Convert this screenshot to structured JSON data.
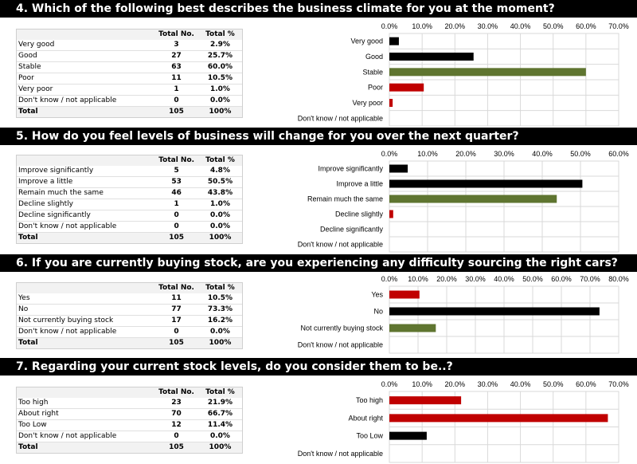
{
  "questions": [
    {
      "title": "4. Which of the following best describes the business climate for you at the moment?",
      "columns": [
        "Total No.",
        "Total %"
      ],
      "rows": [
        {
          "label": "Very good",
          "n": "3",
          "pct": "2.9%"
        },
        {
          "label": "Good",
          "n": "27",
          "pct": "25.7%"
        },
        {
          "label": "Stable",
          "n": "63",
          "pct": "60.0%"
        },
        {
          "label": "Poor",
          "n": "11",
          "pct": "10.5%"
        },
        {
          "label": "Very poor",
          "n": "1",
          "pct": "1.0%"
        },
        {
          "label": "Don't know / not applicable",
          "n": "0",
          "pct": "0.0%"
        }
      ],
      "total": {
        "label": "Total",
        "n": "105",
        "pct": "100%"
      }
    },
    {
      "title": "5. How do you feel levels of business will change for you over the next quarter?",
      "columns": [
        "Total No.",
        "Total %"
      ],
      "rows": [
        {
          "label": "Improve significantly",
          "n": "5",
          "pct": "4.8%"
        },
        {
          "label": "Improve a little",
          "n": "53",
          "pct": "50.5%"
        },
        {
          "label": "Remain much the same",
          "n": "46",
          "pct": "43.8%"
        },
        {
          "label": "Decline slightly",
          "n": "1",
          "pct": "1.0%"
        },
        {
          "label": "Decline significantly",
          "n": "0",
          "pct": "0.0%"
        },
        {
          "label": "Don't know / not applicable",
          "n": "0",
          "pct": "0.0%"
        }
      ],
      "total": {
        "label": "Total",
        "n": "105",
        "pct": "100%"
      }
    },
    {
      "title": "6. If you are currently buying stock, are you experiencing any difficulty sourcing the right cars?",
      "columns": [
        "Total No.",
        "Total %"
      ],
      "rows": [
        {
          "label": "Yes",
          "n": "11",
          "pct": "10.5%"
        },
        {
          "label": "No",
          "n": "77",
          "pct": "73.3%"
        },
        {
          "label": "Not currently buying stock",
          "n": "17",
          "pct": "16.2%"
        },
        {
          "label": "Don't know / not applicable",
          "n": "0",
          "pct": "0.0%"
        }
      ],
      "total": {
        "label": "Total",
        "n": "105",
        "pct": "100%"
      }
    },
    {
      "title": "7. Regarding your current stock levels, do you consider them to be..?",
      "columns": [
        "Total No.",
        "Total %"
      ],
      "rows": [
        {
          "label": "Too high",
          "n": "23",
          "pct": "21.9%"
        },
        {
          "label": "About right",
          "n": "70",
          "pct": "66.7%"
        },
        {
          "label": "Too Low",
          "n": "12",
          "pct": "11.4%"
        },
        {
          "label": "Don't know / not applicable",
          "n": "0",
          "pct": "0.0%"
        }
      ],
      "total": {
        "label": "Total",
        "n": "105",
        "pct": "100%"
      }
    }
  ],
  "chart_data": [
    {
      "type": "bar",
      "orientation": "horizontal",
      "categories": [
        "Very good",
        "Good",
        "Stable",
        "Poor",
        "Very poor",
        "Don't know / not applicable"
      ],
      "values": [
        2.9,
        25.7,
        60.0,
        10.5,
        1.0,
        0.0
      ],
      "colors": [
        "#000000",
        "#000000",
        "#5f7530",
        "#c00000",
        "#c00000",
        "#c00000"
      ],
      "xlim": [
        0,
        70
      ],
      "ticks": [
        "0.0%",
        "10.0%",
        "20.0%",
        "30.0%",
        "40.0%",
        "50.0%",
        "60.0%",
        "70.0%"
      ],
      "axis_position": "top",
      "grid": true
    },
    {
      "type": "bar",
      "orientation": "horizontal",
      "categories": [
        "Improve significantly",
        "Improve a little",
        "Remain much the same",
        "Decline slightly",
        "Decline significantly",
        "Don't know / not applicable"
      ],
      "values": [
        4.8,
        50.5,
        43.8,
        1.0,
        0.0,
        0.0
      ],
      "colors": [
        "#000000",
        "#000000",
        "#5f7530",
        "#c00000",
        "#c00000",
        "#c00000"
      ],
      "xlim": [
        0,
        60
      ],
      "ticks": [
        "0.0%",
        "10.0%",
        "20.0%",
        "30.0%",
        "40.0%",
        "50.0%",
        "60.0%"
      ],
      "axis_position": "top",
      "grid": true
    },
    {
      "type": "bar",
      "orientation": "horizontal",
      "categories": [
        "Yes",
        "No",
        "Not currently buying stock",
        "Don't know / not applicable"
      ],
      "values": [
        10.5,
        73.3,
        16.2,
        0.0
      ],
      "colors": [
        "#c00000",
        "#000000",
        "#5f7530",
        "#c00000"
      ],
      "xlim": [
        0,
        80
      ],
      "ticks": [
        "0.0%",
        "10.0%",
        "20.0%",
        "30.0%",
        "40.0%",
        "50.0%",
        "60.0%",
        "70.0%",
        "80.0%"
      ],
      "axis_position": "top",
      "grid": true
    },
    {
      "type": "bar",
      "orientation": "horizontal",
      "categories": [
        "Too high",
        "About right",
        "Too Low",
        "Don't know / not applicable"
      ],
      "values": [
        21.9,
        66.7,
        11.4,
        0.0
      ],
      "colors": [
        "#c00000",
        "#c00000",
        "#000000",
        "#000000"
      ],
      "xlim": [
        0,
        70
      ],
      "ticks": [
        "0.0%",
        "10.0%",
        "20.0%",
        "30.0%",
        "40.0%",
        "50.0%",
        "60.0%",
        "70.0%"
      ],
      "axis_position": "top",
      "grid": true
    }
  ]
}
